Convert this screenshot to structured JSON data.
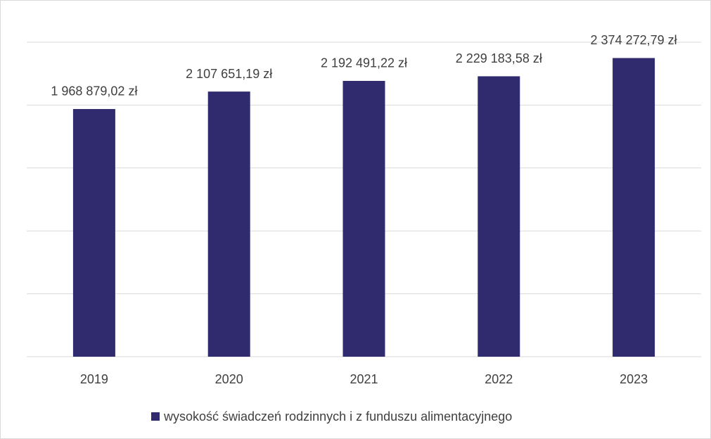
{
  "chart_data": {
    "type": "bar",
    "categories": [
      "2019",
      "2020",
      "2021",
      "2022",
      "2023"
    ],
    "series": [
      {
        "name": "wysokość świadczeń rodzinnych i z funduszu alimentacyjnego",
        "color": "#302a6e",
        "values": [
          1968879.02,
          2107651.19,
          2192491.22,
          2229183.58,
          2374272.79
        ],
        "value_labels": [
          "1 968 879,02 zł",
          "2 107 651,19 zł",
          "2 192 491,22 zł",
          "2 229 183,58 zł",
          "2 374 272,79 zł"
        ]
      }
    ],
    "ylim": [
      0,
      2500000
    ],
    "yticks": [
      0,
      500000,
      1000000,
      1500000,
      2000000,
      2500000
    ],
    "grid": true,
    "legend": "bottom"
  }
}
